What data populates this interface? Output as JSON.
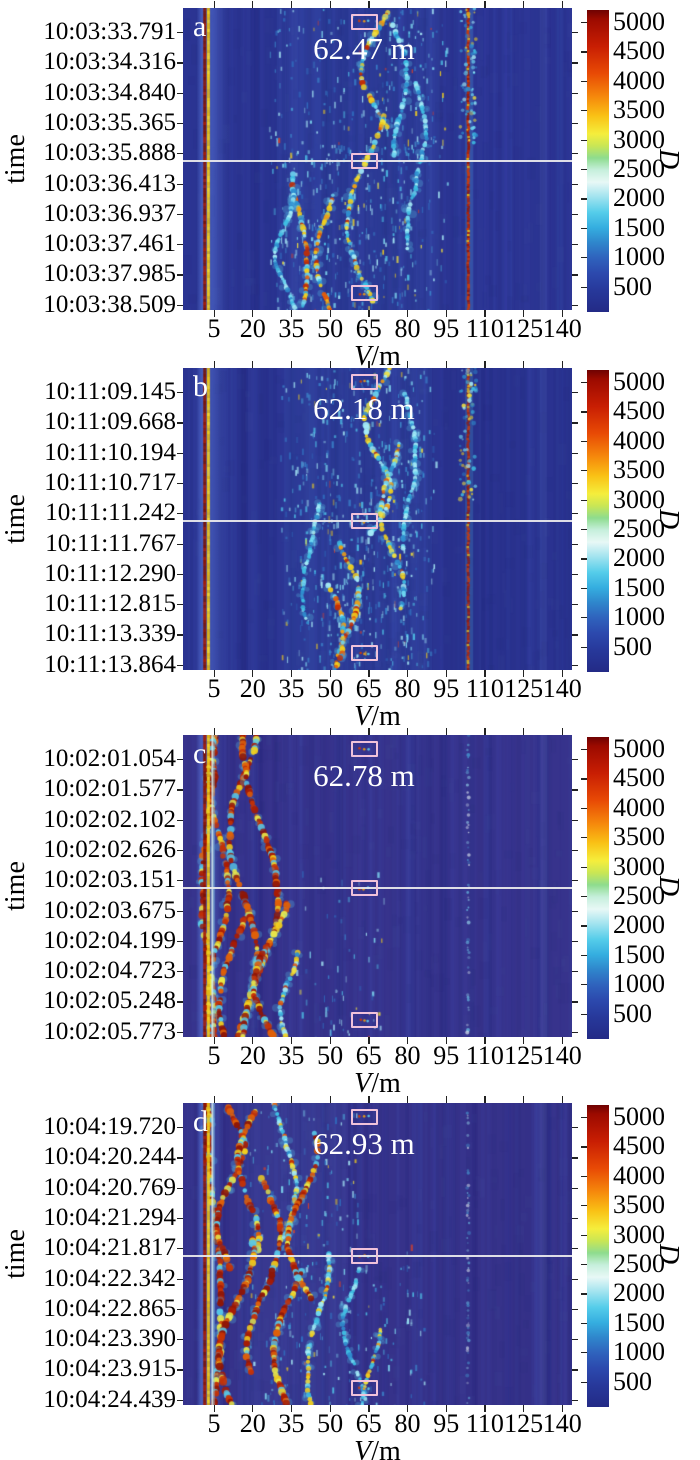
{
  "figure_title": "",
  "ylabel": "time",
  "xlabel": "V/m",
  "xlabel_var": "V",
  "xlabel_unit": "/m",
  "colorbar_label": "D",
  "chart_data": [
    {
      "type": "heatmap",
      "panel_label": "a",
      "annotation": "62.47 m",
      "ylabel": "time",
      "xlabel": "V/m",
      "xlabel_var": "V",
      "xlabel_unit": "/m",
      "x_ticks": [
        5,
        20,
        35,
        50,
        65,
        80,
        95,
        110,
        125,
        140
      ],
      "y_ticks": [
        "10:03:33.791",
        "10:03:34.316",
        "10:03:34.840",
        "10:03:35.365",
        "10:03:35.888",
        "10:03:36.413",
        "10:03:36.937",
        "10:03:37.461",
        "10:03:37.985",
        "10:03:38.509"
      ],
      "colorbar": {
        "label": "D",
        "ticks": [
          500,
          1000,
          1500,
          2000,
          2500,
          3000,
          3500,
          4000,
          4500,
          5000
        ],
        "vmin": 0,
        "vmax": 5000
      },
      "center_line": true,
      "marker_fx": 0.465,
      "marker_boxes_fy": [
        0.045,
        0.508,
        0.945
      ],
      "seed": 7,
      "texture": {
        "bg": "#2b3492",
        "halo": [
          0.034,
          0.118
        ],
        "left_stripes": [
          {
            "fx": 0.052,
            "w": 3,
            "kind": "red"
          },
          {
            "fx": 0.0615,
            "w": 3,
            "kind": "yellow"
          }
        ],
        "pale_stripe": null,
        "wash": [
          {
            "fx": [
              0.24,
              0.66
            ],
            "fy": [
              0,
              1
            ],
            "alpha": 0.08
          }
        ],
        "clutter": [
          {
            "fx": [
              0.22,
              0.68
            ],
            "fy": [
              0,
              1
            ],
            "d": 0.4
          },
          {
            "fx": [
              0.26,
              0.58
            ],
            "fy": [
              0.45,
              1
            ],
            "d": 0.5
          },
          {
            "fx": [
              0.5,
              0.64
            ],
            "fy": [
              0,
              0.5
            ],
            "d": 0.45
          }
        ],
        "streaks": [
          {
            "fx": 0.495,
            "fy": [
              0.0,
              0.4
            ],
            "type": "mix",
            "s": 1.0,
            "amp": 0.02
          },
          {
            "fx": 0.545,
            "fy": [
              0.05,
              0.5
            ],
            "type": "cool",
            "s": 0.8,
            "amp": 0.013
          },
          {
            "fx": 0.47,
            "fy": [
              0.35,
              0.97
            ],
            "type": "mix",
            "s": 0.9,
            "amp": 0.025
          },
          {
            "fx": 0.3,
            "fy": [
              0.55,
              1
            ],
            "type": "hot",
            "s": 1.0,
            "amp": 0.013
          },
          {
            "fx": 0.26,
            "fy": [
              0.62,
              1
            ],
            "type": "cool",
            "s": 0.7,
            "amp": 0.013
          },
          {
            "fx": 0.365,
            "fy": [
              0.62,
              1
            ],
            "type": "hot",
            "s": 0.9,
            "amp": 0.013
          },
          {
            "fx": 0.6,
            "fy": [
              0.25,
              0.8
            ],
            "type": "cool",
            "s": 0.6,
            "amp": 0.013
          }
        ],
        "right_line": {
          "fx": 0.733,
          "style": "solid",
          "s": 1.0
        },
        "faint_band": 0.925
      }
    },
    {
      "type": "heatmap",
      "panel_label": "b",
      "annotation": "62.18 m",
      "ylabel": "time",
      "xlabel": "V/m",
      "xlabel_var": "V",
      "xlabel_unit": "/m",
      "x_ticks": [
        5,
        20,
        35,
        50,
        65,
        80,
        95,
        110,
        125,
        140
      ],
      "y_ticks": [
        "10:11:09.145",
        "10:11:09.668",
        "10:11:10.194",
        "10:11:10.717",
        "10:11:11.242",
        "10:11:11.767",
        "10:11:12.290",
        "10:11:12.815",
        "10:11:13.339",
        "10:11:13.864"
      ],
      "colorbar": {
        "label": "D",
        "ticks": [
          500,
          1000,
          1500,
          2000,
          2500,
          3000,
          3500,
          4000,
          4500,
          5000
        ],
        "vmin": 0,
        "vmax": 5000
      },
      "center_line": true,
      "marker_fx": 0.465,
      "marker_boxes_fy": [
        0.045,
        0.508,
        0.945
      ],
      "seed": 13,
      "texture": {
        "bg": "#2a3390",
        "halo": [
          0.034,
          0.118
        ],
        "left_stripes": [
          {
            "fx": 0.052,
            "w": 3,
            "kind": "red"
          },
          {
            "fx": 0.0615,
            "w": 3,
            "kind": "yellow"
          }
        ],
        "pale_stripe": null,
        "wash": [
          {
            "fx": [
              0.26,
              0.64
            ],
            "fy": [
              0,
              1
            ],
            "alpha": 0.09
          }
        ],
        "clutter": [
          {
            "fx": [
              0.25,
              0.65
            ],
            "fy": [
              0,
              1
            ],
            "d": 0.55
          },
          {
            "fx": [
              0.3,
              0.6
            ],
            "fy": [
              0.3,
              1
            ],
            "d": 0.45
          }
        ],
        "streaks": [
          {
            "fx": 0.5,
            "fy": [
              0,
              0.55
            ],
            "type": "mix",
            "s": 1.0,
            "amp": 0.018
          },
          {
            "fx": 0.53,
            "fy": [
              0.25,
              0.8
            ],
            "type": "mix",
            "s": 0.8,
            "amp": 0.013
          },
          {
            "fx": 0.42,
            "fy": [
              0.58,
              1
            ],
            "type": "hot",
            "s": 1.1,
            "amp": 0.015
          },
          {
            "fx": 0.385,
            "fy": [
              0.72,
              1
            ],
            "type": "hot",
            "s": 0.9,
            "amp": 0.013
          },
          {
            "fx": 0.57,
            "fy": [
              0.08,
              0.6
            ],
            "type": "cool",
            "s": 0.7,
            "amp": 0.013
          },
          {
            "fx": 0.335,
            "fy": [
              0.45,
              0.85
            ],
            "type": "cool",
            "s": 0.6,
            "amp": 0.013
          }
        ],
        "right_line": {
          "fx": 0.733,
          "style": "solid",
          "s": 0.85
        },
        "faint_band": 0.925
      }
    },
    {
      "type": "heatmap",
      "panel_label": "c",
      "annotation": "62.78 m",
      "ylabel": "time",
      "xlabel": "V/m",
      "xlabel_var": "V",
      "xlabel_unit": "/m",
      "x_ticks": [
        5,
        20,
        35,
        50,
        65,
        80,
        95,
        110,
        125,
        140
      ],
      "y_ticks": [
        "10:02:01.054",
        "10:02:01.577",
        "10:02:02.102",
        "10:02:02.626",
        "10:02:03.151",
        "10:02:03.675",
        "10:02:04.199",
        "10:02:04.723",
        "10:02:05.248",
        "10:02:05.773"
      ],
      "colorbar": {
        "label": "D",
        "ticks": [
          500,
          1000,
          1500,
          2000,
          2500,
          3000,
          3500,
          4000,
          4500,
          5000
        ],
        "vmin": 0,
        "vmax": 5000
      },
      "center_line": true,
      "marker_fx": 0.465,
      "marker_boxes_fy": [
        0.045,
        0.508,
        0.945
      ],
      "seed": 21,
      "texture": {
        "bg": "#37338c",
        "halo": [
          0.034,
          0.105
        ],
        "left_stripes": [
          {
            "fx": 0.052,
            "w": 3,
            "kind": "red"
          },
          {
            "fx": 0.0615,
            "w": 3,
            "kind": "yellow"
          }
        ],
        "pale_stripe": 0.073,
        "wash": [],
        "clutter": [
          {
            "fx": [
              0.28,
              0.52
            ],
            "fy": [
              0.45,
              1
            ],
            "d": 0.18
          },
          {
            "fx": [
              0.3,
              0.44
            ],
            "fy": [
              0.75,
              1
            ],
            "d": 0.3
          }
        ],
        "streaks": [
          {
            "fx": 0.065,
            "fy": [
              0,
              1
            ],
            "type": "hot2",
            "s": 1.0,
            "amp": 0.008
          },
          {
            "fx": 0.092,
            "fy": [
              0,
              1
            ],
            "type": "hot2",
            "s": 0.9,
            "amp": 0.01
          },
          {
            "fx": 0.155,
            "fy": [
              0,
              1
            ],
            "type": "hot2",
            "s": 1.2,
            "amp": 0.018
          },
          {
            "fx": 0.19,
            "fy": [
              0,
              1
            ],
            "type": "hot2",
            "s": 1.0,
            "amp": 0.02
          },
          {
            "fx": 0.125,
            "fy": [
              0.6,
              1
            ],
            "type": "hot2",
            "s": 0.9,
            "amp": 0.02
          },
          {
            "fx": 0.23,
            "fy": [
              0.55,
              1
            ],
            "type": "hot2",
            "s": 0.9,
            "amp": 0.02
          },
          {
            "fx": 0.27,
            "fy": [
              0.72,
              1
            ],
            "type": "mix",
            "s": 0.8,
            "amp": 0.013
          }
        ],
        "right_line": {
          "fx": 0.733,
          "style": "dotted",
          "s": 0.6
        },
        "faint_band": 0.925
      }
    },
    {
      "type": "heatmap",
      "panel_label": "d",
      "annotation": "62.93 m",
      "ylabel": "time",
      "xlabel": "V/m",
      "xlabel_var": "V",
      "xlabel_unit": "/m",
      "x_ticks": [
        5,
        20,
        35,
        50,
        65,
        80,
        95,
        110,
        125,
        140
      ],
      "y_ticks": [
        "10:04:19.720",
        "10:04:20.244",
        "10:04:20.769",
        "10:04:21.294",
        "10:04:21.817",
        "10:04:22.342",
        "10:04:22.865",
        "10:04:23.390",
        "10:04:23.915",
        "10:04:24.439"
      ],
      "colorbar": {
        "label": "D",
        "ticks": [
          500,
          1000,
          1500,
          2000,
          2500,
          3000,
          3500,
          4000,
          4500,
          5000
        ],
        "vmin": 0,
        "vmax": 5000
      },
      "center_line": true,
      "marker_fx": 0.465,
      "marker_boxes_fy": [
        0.045,
        0.508,
        0.945
      ],
      "seed": 29,
      "texture": {
        "bg": "#36328a",
        "halo": [
          0.034,
          0.105
        ],
        "left_stripes": [
          {
            "fx": 0.052,
            "w": 3,
            "kind": "red"
          },
          {
            "fx": 0.0615,
            "w": 3,
            "kind": "yellow"
          }
        ],
        "pale_stripe": 0.073,
        "wash": [
          {
            "fx": [
              0.15,
              0.42
            ],
            "fy": [
              0,
              1
            ],
            "alpha": 0.07
          }
        ],
        "clutter": [
          {
            "fx": [
              0.17,
              0.45
            ],
            "fy": [
              0,
              1
            ],
            "d": 0.4
          },
          {
            "fx": [
              0.45,
              0.62
            ],
            "fy": [
              0.45,
              1
            ],
            "d": 0.3
          }
        ],
        "streaks": [
          {
            "fx": 0.075,
            "fy": [
              0,
              1
            ],
            "type": "hot2",
            "s": 0.9,
            "amp": 0.008
          },
          {
            "fx": 0.12,
            "fy": [
              0,
              0.55
            ],
            "type": "hot2",
            "s": 1.1,
            "amp": 0.015
          },
          {
            "fx": 0.175,
            "fy": [
              0.02,
              0.5
            ],
            "type": "hot2",
            "s": 1.0,
            "amp": 0.012
          },
          {
            "fx": 0.145,
            "fy": [
              0.45,
              1
            ],
            "type": "hot2",
            "s": 1.1,
            "amp": 0.02
          },
          {
            "fx": 0.215,
            "fy": [
              0.25,
              0.9
            ],
            "type": "hot2",
            "s": 0.9,
            "amp": 0.02
          },
          {
            "fx": 0.26,
            "fy": [
              0.0,
              0.45
            ],
            "type": "mix",
            "s": 0.8,
            "amp": 0.013
          },
          {
            "fx": 0.3,
            "fy": [
              0.1,
              0.65
            ],
            "type": "hot2",
            "s": 0.8,
            "amp": 0.02
          },
          {
            "fx": 0.275,
            "fy": [
              0.55,
              1
            ],
            "type": "hot2",
            "s": 1.0,
            "amp": 0.02
          },
          {
            "fx": 0.35,
            "fy": [
              0.5,
              1
            ],
            "type": "mix",
            "s": 0.8,
            "amp": 0.013
          },
          {
            "fx": 0.43,
            "fy": [
              0.55,
              1
            ],
            "type": "cool",
            "s": 0.7,
            "amp": 0.013
          },
          {
            "fx": 0.48,
            "fy": [
              0.75,
              1
            ],
            "type": "mix",
            "s": 0.6,
            "amp": 0.013
          }
        ],
        "right_line": {
          "fx": 0.733,
          "style": "dotted",
          "s": 0.5
        },
        "faint_band": 0.925
      }
    }
  ]
}
